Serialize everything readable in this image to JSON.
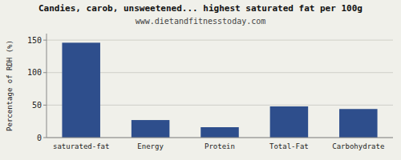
{
  "chart_data": {
    "type": "bar",
    "title": "Candies, carob, unsweetened... highest saturated fat per 100g",
    "subtitle": "www.dietandfitnesstoday.com",
    "ylabel": "Percentage of RDH (%)",
    "categories": [
      "saturated-fat",
      "Energy",
      "Protein",
      "Total-Fat",
      "Carbohydrate"
    ],
    "values": [
      146,
      27,
      16,
      48,
      44
    ],
    "color": "#2e4e8c",
    "ylim": [
      0,
      160
    ],
    "yticks": [
      0,
      50,
      100,
      150
    ],
    "grid": true
  }
}
